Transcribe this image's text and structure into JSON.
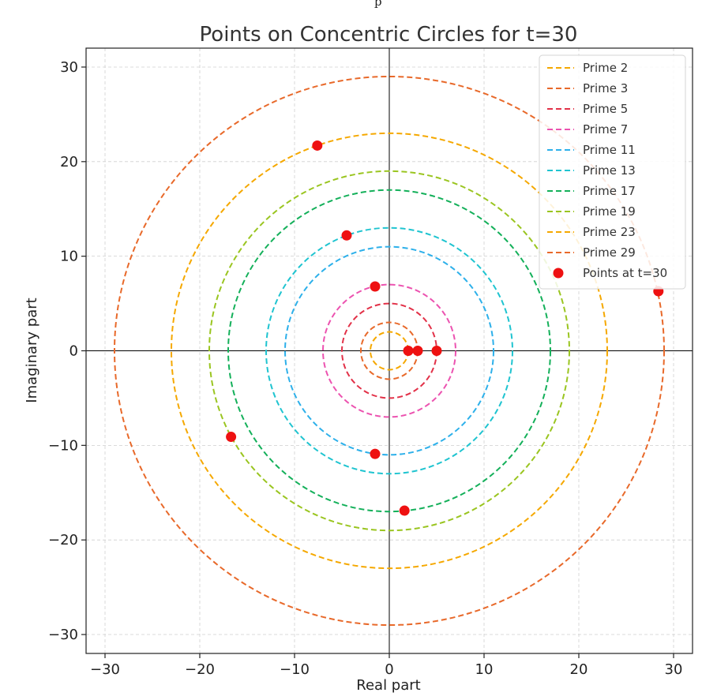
{
  "stray_text": "p",
  "chart_data": {
    "type": "scatter",
    "title": "Points on Concentric Circles for t=30",
    "xlabel": "Real part",
    "ylabel": "Imaginary part",
    "xlim": [
      -32,
      32
    ],
    "ylim": [
      -32,
      32
    ],
    "x_ticks": [
      -30,
      -20,
      -10,
      0,
      10,
      20,
      30
    ],
    "y_ticks": [
      -30,
      -20,
      -10,
      0,
      10,
      20,
      30
    ],
    "x_tick_labels": [
      "−30",
      "−20",
      "−10",
      "0",
      "10",
      "20",
      "30"
    ],
    "y_tick_labels": [
      "−30",
      "−20",
      "−10",
      "0",
      "10",
      "20",
      "30"
    ],
    "grid": true,
    "legend_position": "top-right",
    "circles": [
      {
        "name": "Prime 2",
        "radius": 2,
        "color": "#f5a800"
      },
      {
        "name": "Prime 3",
        "radius": 3,
        "color": "#e8692a"
      },
      {
        "name": "Prime 5",
        "radius": 5,
        "color": "#e23148"
      },
      {
        "name": "Prime 7",
        "radius": 7,
        "color": "#ec53b0"
      },
      {
        "name": "Prime 11",
        "radius": 11,
        "color": "#2db0ea"
      },
      {
        "name": "Prime 13",
        "radius": 13,
        "color": "#1fc4d0"
      },
      {
        "name": "Prime 17",
        "radius": 17,
        "color": "#14b05a"
      },
      {
        "name": "Prime 19",
        "radius": 19,
        "color": "#9ac520"
      },
      {
        "name": "Prime 23",
        "radius": 23,
        "color": "#f5a800"
      },
      {
        "name": "Prime 29",
        "radius": 29,
        "color": "#e8692a"
      }
    ],
    "points": {
      "name": "Points at t=30",
      "color": "#ee1111",
      "values": [
        {
          "x": 2.0,
          "y": 0.0
        },
        {
          "x": 3.0,
          "y": 0.0
        },
        {
          "x": 5.0,
          "y": 0.0
        },
        {
          "x": -1.5,
          "y": 6.8
        },
        {
          "x": -1.5,
          "y": -10.9
        },
        {
          "x": -4.5,
          "y": 12.2
        },
        {
          "x": 1.6,
          "y": -16.9
        },
        {
          "x": -16.7,
          "y": -9.1
        },
        {
          "x": -7.6,
          "y": 21.7
        },
        {
          "x": 28.4,
          "y": 6.3
        }
      ]
    }
  }
}
